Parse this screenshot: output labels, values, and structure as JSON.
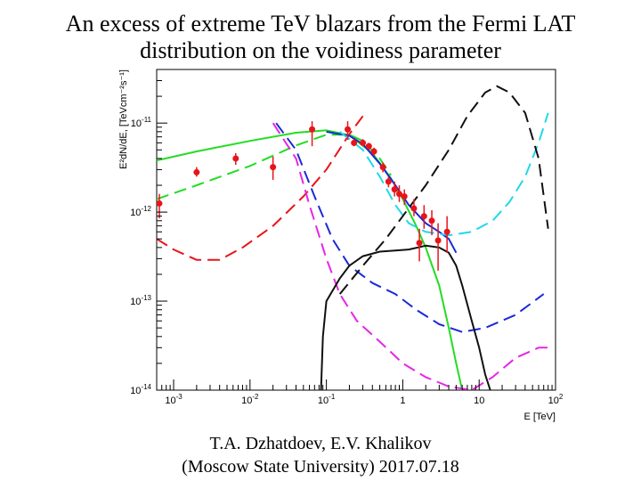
{
  "slide": {
    "title_line1": "An excess of extreme TeV blazars from the Fermi LAT",
    "title_line2": "distribution on the voidiness parameter",
    "author_line": "T.A. Dzhatdoev, E.V. Khalikov",
    "affiliation_line": "(Moscow State University) 2017.07.18"
  },
  "chart_data": {
    "type": "scatter",
    "title": "",
    "xlabel": "E [TeV]",
    "ylabel": "E²dN/dE, [TeVcm⁻²s⁻¹]",
    "x_scale": "log",
    "y_scale": "log",
    "xlim": [
      0.0006,
      100
    ],
    "ylim": [
      1e-14,
      4e-11
    ],
    "grid": false,
    "x_ticks": [
      {
        "value": 0.001,
        "base": "10",
        "exp": "-3"
      },
      {
        "value": 0.01,
        "base": "10",
        "exp": "-2"
      },
      {
        "value": 0.1,
        "base": "10",
        "exp": "-1"
      },
      {
        "value": 1,
        "base": "1",
        "exp": ""
      },
      {
        "value": 10,
        "base": "10",
        "exp": ""
      },
      {
        "value": 100,
        "base": "10",
        "exp": "2"
      }
    ],
    "y_ticks": [
      {
        "value": 1e-14,
        "base": "10",
        "exp": "-14"
      },
      {
        "value": 1e-13,
        "base": "10",
        "exp": "-13"
      },
      {
        "value": 1e-12,
        "base": "10",
        "exp": "-12"
      },
      {
        "value": 1e-11,
        "base": "10",
        "exp": "-11"
      }
    ],
    "points": {
      "color": "#e8141b",
      "data": [
        {
          "x": 0.00065,
          "y": 1.25e-12,
          "ylo": 8.5e-13,
          "yhi": 1.6e-12
        },
        {
          "x": 0.002,
          "y": 2.8e-12,
          "ylo": 2.5e-12,
          "yhi": 3.2e-12
        },
        {
          "x": 0.0065,
          "y": 4e-12,
          "ylo": 3.4e-12,
          "yhi": 4.6e-12
        },
        {
          "x": 0.02,
          "y": 3.2e-12,
          "ylo": 2.3e-12,
          "yhi": 4.2e-12
        },
        {
          "x": 0.065,
          "y": 8.5e-12,
          "ylo": 5.5e-12,
          "yhi": 1.05e-11
        },
        {
          "x": 0.19,
          "y": 8.5e-12,
          "ylo": 6.5e-12,
          "yhi": 1.05e-11
        },
        {
          "x": 0.23,
          "y": 6e-12,
          "ylo": 5.5e-12,
          "yhi": 6.6e-12
        },
        {
          "x": 0.3,
          "y": 6e-12,
          "ylo": 5.5e-12,
          "yhi": 6.6e-12
        },
        {
          "x": 0.36,
          "y": 5.5e-12,
          "ylo": 5e-12,
          "yhi": 6e-12
        },
        {
          "x": 0.42,
          "y": 4.8e-12,
          "ylo": 4.3e-12,
          "yhi": 5.3e-12
        },
        {
          "x": 0.55,
          "y": 3.2e-12,
          "ylo": 2.8e-12,
          "yhi": 3.6e-12
        },
        {
          "x": 0.65,
          "y": 2.2e-12,
          "ylo": 1.9e-12,
          "yhi": 2.5e-12
        },
        {
          "x": 0.78,
          "y": 1.8e-12,
          "ylo": 1.5e-12,
          "yhi": 2.2e-12
        },
        {
          "x": 0.9,
          "y": 1.6e-12,
          "ylo": 1.3e-12,
          "yhi": 2e-12
        },
        {
          "x": 1.05,
          "y": 1.5e-12,
          "ylo": 1.2e-12,
          "yhi": 1.8e-12
        },
        {
          "x": 1.4,
          "y": 1.1e-12,
          "ylo": 9e-13,
          "yhi": 1.4e-12
        },
        {
          "x": 1.65,
          "y": 4.5e-13,
          "ylo": 2.8e-13,
          "yhi": 6.5e-13
        },
        {
          "x": 1.9,
          "y": 9e-13,
          "ylo": 6.5e-13,
          "yhi": 1.2e-12
        },
        {
          "x": 2.4,
          "y": 8e-13,
          "ylo": 5.5e-13,
          "yhi": 1.05e-12
        },
        {
          "x": 2.9,
          "y": 4.8e-13,
          "ylo": 2.2e-13,
          "yhi": 7.5e-13
        },
        {
          "x": 3.8,
          "y": 6e-13,
          "ylo": 3.5e-13,
          "yhi": 9e-13
        }
      ]
    },
    "curves": [
      {
        "color": "#22dd22",
        "dash": "solid",
        "points": [
          [
            0.0006,
            3.8e-12
          ],
          [
            0.002,
            4.8e-12
          ],
          [
            0.01,
            6.3e-12
          ],
          [
            0.04,
            7.8e-12
          ],
          [
            0.1,
            8.3e-12
          ],
          [
            0.2,
            7.3e-12
          ],
          [
            0.4,
            4.6e-12
          ],
          [
            0.7,
            2.4e-12
          ],
          [
            1.0,
            1.4e-12
          ],
          [
            1.5,
            7e-13
          ],
          [
            2.0,
            4e-13
          ],
          [
            3.0,
            1.5e-13
          ],
          [
            4.0,
            5e-14
          ],
          [
            5.0,
            2e-14
          ],
          [
            6.0,
            1e-14
          ]
        ]
      },
      {
        "color": "#22dd22",
        "dash": "dashed",
        "points": [
          [
            0.0006,
            1.4e-12
          ],
          [
            0.002,
            2e-12
          ],
          [
            0.01,
            3.3e-12
          ],
          [
            0.04,
            5.6e-12
          ],
          [
            0.1,
            7.4e-12
          ],
          [
            0.2,
            7.4e-12
          ],
          [
            0.3,
            6.3e-12
          ],
          [
            0.5,
            4e-12
          ],
          [
            0.7,
            2.6e-12
          ]
        ]
      },
      {
        "color": "#e8141b",
        "dash": "dashed",
        "points": [
          [
            0.0006,
            5e-13
          ],
          [
            0.001,
            3.8e-13
          ],
          [
            0.002,
            2.9e-13
          ],
          [
            0.004,
            2.9e-13
          ],
          [
            0.008,
            4e-13
          ],
          [
            0.02,
            7e-13
          ],
          [
            0.05,
            1.5e-12
          ],
          [
            0.1,
            3e-12
          ],
          [
            0.2,
            7.5e-12
          ],
          [
            0.3,
            1.2e-11
          ]
        ]
      },
      {
        "color": "#1a2ad8",
        "dash": "dashed",
        "points": [
          [
            0.022,
            1e-11
          ],
          [
            0.04,
            5e-12
          ],
          [
            0.07,
            1.5e-12
          ],
          [
            0.12,
            5e-13
          ],
          [
            0.2,
            2.5e-13
          ],
          [
            0.4,
            1.6e-13
          ],
          [
            0.8,
            1.2e-13
          ],
          [
            1.5,
            8e-14
          ],
          [
            3.0,
            5.5e-14
          ],
          [
            6.0,
            4.5e-14
          ],
          [
            12,
            5e-14
          ],
          [
            30,
            7e-14
          ],
          [
            70,
            1.2e-13
          ]
        ]
      },
      {
        "color": "#1a2ad8",
        "dash": "solid",
        "points": [
          [
            0.1,
            8e-12
          ],
          [
            0.2,
            7.2e-12
          ],
          [
            0.3,
            5.8e-12
          ],
          [
            0.5,
            3.5e-12
          ],
          [
            0.8,
            2e-12
          ],
          [
            1.2,
            1.2e-12
          ],
          [
            2.0,
            7.5e-13
          ],
          [
            3.0,
            6e-13
          ],
          [
            4.0,
            5e-13
          ],
          [
            5.0,
            3.5e-13
          ]
        ]
      },
      {
        "color": "#e626e6",
        "dash": "dashed",
        "points": [
          [
            0.02,
            1e-11
          ],
          [
            0.04,
            4e-12
          ],
          [
            0.06,
            1.2e-12
          ],
          [
            0.1,
            3e-13
          ],
          [
            0.15,
            1.2e-13
          ],
          [
            0.25,
            6e-14
          ],
          [
            0.5,
            3.5e-14
          ],
          [
            1.0,
            2e-14
          ],
          [
            2.0,
            1.4e-14
          ],
          [
            4.0,
            1.1e-14
          ],
          [
            8.0,
            1e-14
          ],
          [
            15,
            1.4e-14
          ],
          [
            30,
            2.3e-14
          ],
          [
            60,
            3e-14
          ],
          [
            80,
            3e-14
          ]
        ]
      },
      {
        "color": "#22d8e8",
        "dash": "dashed",
        "points": [
          [
            0.15,
            8e-12
          ],
          [
            0.3,
            5e-12
          ],
          [
            0.5,
            2.5e-12
          ],
          [
            0.8,
            1.2e-12
          ],
          [
            1.2,
            7.5e-13
          ],
          [
            2.0,
            6e-13
          ],
          [
            4.0,
            5.5e-13
          ],
          [
            8.0,
            6e-13
          ],
          [
            15,
            8e-13
          ],
          [
            25,
            1.3e-12
          ],
          [
            40,
            2.5e-12
          ],
          [
            60,
            6e-12
          ],
          [
            80,
            1.3e-11
          ]
        ]
      },
      {
        "color": "#111111",
        "dash": "dashed",
        "points": [
          [
            0.15,
            1.2e-13
          ],
          [
            0.3,
            2.5e-13
          ],
          [
            0.6,
            5e-13
          ],
          [
            1.0,
            9e-13
          ],
          [
            2.0,
            2e-12
          ],
          [
            4.0,
            5e-12
          ],
          [
            7.0,
            1.2e-11
          ],
          [
            12,
            2.2e-11
          ],
          [
            17,
            2.6e-11
          ],
          [
            25,
            2.2e-11
          ],
          [
            40,
            1.3e-11
          ],
          [
            60,
            4e-12
          ],
          [
            80,
            6.5e-13
          ]
        ]
      },
      {
        "color": "#111111",
        "dash": "solid",
        "points": [
          [
            0.085,
            1e-14
          ],
          [
            0.09,
            4e-14
          ],
          [
            0.1,
            1e-13
          ],
          [
            0.15,
            1.8e-13
          ],
          [
            0.2,
            2.5e-13
          ],
          [
            0.3,
            3.2e-13
          ],
          [
            0.5,
            3.6e-13
          ],
          [
            0.8,
            3.7e-13
          ],
          [
            1.2,
            3.8e-13
          ],
          [
            2.0,
            4.2e-13
          ],
          [
            3.0,
            4e-13
          ],
          [
            4.0,
            3.5e-13
          ],
          [
            5.0,
            2.5e-13
          ],
          [
            6.0,
            1.5e-13
          ],
          [
            8.0,
            6e-14
          ],
          [
            10,
            3e-14
          ],
          [
            12,
            1.5e-14
          ],
          [
            14,
            1e-14
          ]
        ]
      }
    ]
  }
}
